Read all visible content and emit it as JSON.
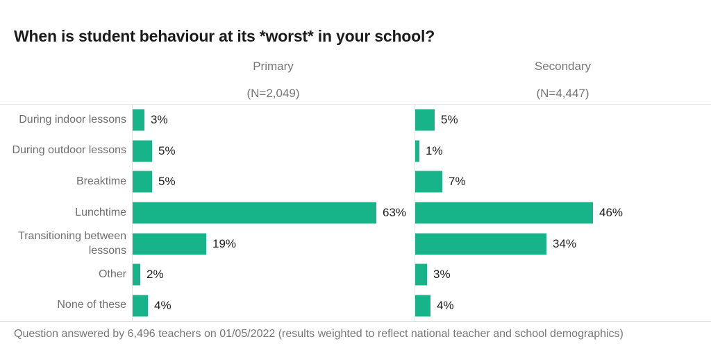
{
  "title": "When is student behaviour at its *worst* in your school?",
  "footer": "Question answered by 6,496 teachers on 01/05/2022 (results weighted to reflect national teacher and school demographics)",
  "colors": {
    "bar": "#17b389",
    "title_text": "#1b1b1b",
    "gray_text": "#767676",
    "value_text": "#1e1e1e",
    "hairline": "#e3e3e3"
  },
  "chart_data": {
    "type": "bar",
    "orientation": "horizontal",
    "title": "When is student behaviour at its *worst* in your school?",
    "categories": [
      "During indoor lessons",
      "During outdoor lessons",
      "Breaktime",
      "Lunchtime",
      "Transitioning between lessons",
      "Other",
      "None of these"
    ],
    "series": [
      {
        "name": "Primary",
        "subtitle": "(N=2,049)",
        "values": [
          3,
          5,
          5,
          63,
          19,
          2,
          4
        ]
      },
      {
        "name": "Secondary",
        "subtitle": "(N=4,447)",
        "values": [
          5,
          1,
          7,
          46,
          34,
          3,
          4
        ]
      }
    ],
    "value_suffix": "%",
    "xlim": [
      0,
      70
    ],
    "grid": false,
    "legend_position": "column-headers",
    "value_labels": "outside-end"
  }
}
